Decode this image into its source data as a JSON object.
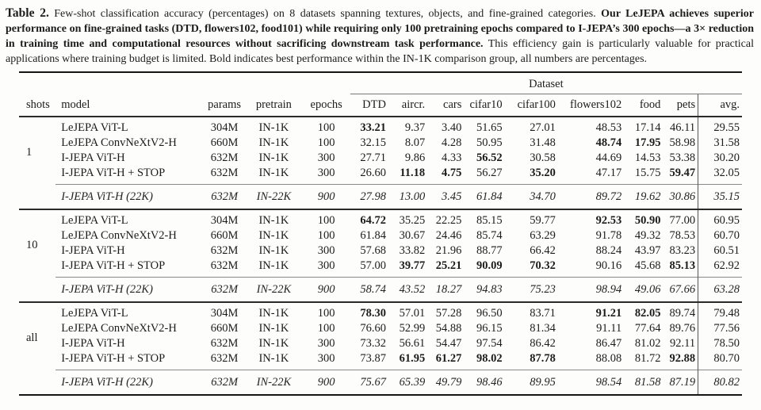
{
  "caption": {
    "label": "Table 2.",
    "intro": "Few-shot classification accuracy (percentages) on 8 datasets spanning textures, objects, and fine-grained categories.",
    "highlight": "Our LeJEPA achieves superior performance on fine-grained tasks (DTD, flowers102, food101) while requiring only 100 pretraining epochs compared to I-JEPA’s 300 epochs—a 3× reduction in training time and computational resources without sacrificing downstream task performance.",
    "outro": "This efficiency gain is particularly valuable for practical applications where training budget is limited. Bold indicates best performance within the IN-1K comparison group, all numbers are percentages."
  },
  "table": {
    "span_header": "Dataset",
    "columns": [
      "shots",
      "model",
      "params",
      "pretrain",
      "epochs",
      "DTD",
      "aircr.",
      "cars",
      "cifar10",
      "cifar100",
      "flowers102",
      "food",
      "pets",
      "avg."
    ],
    "groups": [
      {
        "shots": "1",
        "rows": [
          {
            "model": "LeJEPA ViT-L",
            "params": "304M",
            "pretrain": "IN-1K",
            "epochs": "100",
            "values": [
              "33.21",
              "9.37",
              "3.40",
              "51.65",
              "27.01",
              "48.53",
              "17.14",
              "46.11",
              "29.55"
            ],
            "bold": [
              0
            ]
          },
          {
            "model": "LeJEPA ConvNeXtV2-H",
            "params": "660M",
            "pretrain": "IN-1K",
            "epochs": "100",
            "values": [
              "32.15",
              "8.07",
              "4.28",
              "50.95",
              "31.48",
              "48.74",
              "17.95",
              "58.98",
              "31.58"
            ],
            "bold": [
              5,
              6
            ]
          },
          {
            "model": "I-JEPA ViT-H",
            "params": "632M",
            "pretrain": "IN-1K",
            "epochs": "300",
            "values": [
              "27.71",
              "9.86",
              "4.33",
              "56.52",
              "30.58",
              "44.69",
              "14.53",
              "53.38",
              "30.20"
            ],
            "bold": [
              3
            ]
          },
          {
            "model": "I-JEPA ViT-H + STOP",
            "params": "632M",
            "pretrain": "IN-1K",
            "epochs": "300",
            "values": [
              "26.60",
              "11.18",
              "4.75",
              "56.27",
              "35.20",
              "47.17",
              "15.75",
              "59.47",
              "32.05"
            ],
            "bold": [
              1,
              2,
              4,
              7
            ]
          }
        ],
        "reference_row": {
          "model": "I-JEPA ViT-H (22K)",
          "params": "632M",
          "pretrain": "IN-22K",
          "epochs": "900",
          "values": [
            "27.98",
            "13.00",
            "3.45",
            "61.84",
            "34.70",
            "89.72",
            "19.62",
            "30.86",
            "35.15"
          ]
        }
      },
      {
        "shots": "10",
        "rows": [
          {
            "model": "LeJEPA ViT-L",
            "params": "304M",
            "pretrain": "IN-1K",
            "epochs": "100",
            "values": [
              "64.72",
              "35.25",
              "22.25",
              "85.15",
              "59.77",
              "92.53",
              "50.90",
              "77.00",
              "60.95"
            ],
            "bold": [
              0,
              5,
              6
            ]
          },
          {
            "model": "LeJEPA ConvNeXtV2-H",
            "params": "660M",
            "pretrain": "IN-1K",
            "epochs": "100",
            "values": [
              "61.84",
              "30.67",
              "24.46",
              "85.74",
              "63.29",
              "91.78",
              "49.32",
              "78.53",
              "60.70"
            ],
            "bold": []
          },
          {
            "model": "I-JEPA ViT-H",
            "params": "632M",
            "pretrain": "IN-1K",
            "epochs": "300",
            "values": [
              "57.68",
              "33.82",
              "21.96",
              "88.77",
              "66.42",
              "88.24",
              "43.97",
              "83.23",
              "60.51"
            ],
            "bold": []
          },
          {
            "model": "I-JEPA ViT-H + STOP",
            "params": "632M",
            "pretrain": "IN-1K",
            "epochs": "300",
            "values": [
              "57.00",
              "39.77",
              "25.21",
              "90.09",
              "70.32",
              "90.16",
              "45.68",
              "85.13",
              "62.92"
            ],
            "bold": [
              1,
              2,
              3,
              4,
              7
            ]
          }
        ],
        "reference_row": {
          "model": "I-JEPA ViT-H (22K)",
          "params": "632M",
          "pretrain": "IN-22K",
          "epochs": "900",
          "values": [
            "58.74",
            "43.52",
            "18.27",
            "94.83",
            "75.23",
            "98.94",
            "49.06",
            "67.66",
            "63.28"
          ]
        }
      },
      {
        "shots": "all",
        "rows": [
          {
            "model": "LeJEPA ViT-L",
            "params": "304M",
            "pretrain": "IN-1K",
            "epochs": "100",
            "values": [
              "78.30",
              "57.01",
              "57.28",
              "96.50",
              "83.71",
              "91.21",
              "82.05",
              "89.74",
              "79.48"
            ],
            "bold": [
              0,
              5,
              6
            ]
          },
          {
            "model": "LeJEPA ConvNeXtV2-H",
            "params": "660M",
            "pretrain": "IN-1K",
            "epochs": "100",
            "values": [
              "76.60",
              "52.99",
              "54.88",
              "96.15",
              "81.34",
              "91.11",
              "77.64",
              "89.76",
              "77.56"
            ],
            "bold": []
          },
          {
            "model": "I-JEPA ViT-H",
            "params": "632M",
            "pretrain": "IN-1K",
            "epochs": "300",
            "values": [
              "73.32",
              "56.61",
              "54.47",
              "97.54",
              "86.42",
              "86.47",
              "81.02",
              "92.11",
              "78.50"
            ],
            "bold": []
          },
          {
            "model": "I-JEPA ViT-H + STOP",
            "params": "632M",
            "pretrain": "IN-1K",
            "epochs": "300",
            "values": [
              "73.87",
              "61.95",
              "61.27",
              "98.02",
              "87.78",
              "88.08",
              "81.72",
              "92.88",
              "80.70"
            ],
            "bold": [
              1,
              2,
              3,
              4,
              7
            ]
          }
        ],
        "reference_row": {
          "model": "I-JEPA ViT-H (22K)",
          "params": "632M",
          "pretrain": "IN-22K",
          "epochs": "900",
          "values": [
            "75.67",
            "65.39",
            "49.79",
            "98.46",
            "89.95",
            "98.54",
            "81.58",
            "87.19",
            "80.82"
          ]
        }
      }
    ]
  }
}
